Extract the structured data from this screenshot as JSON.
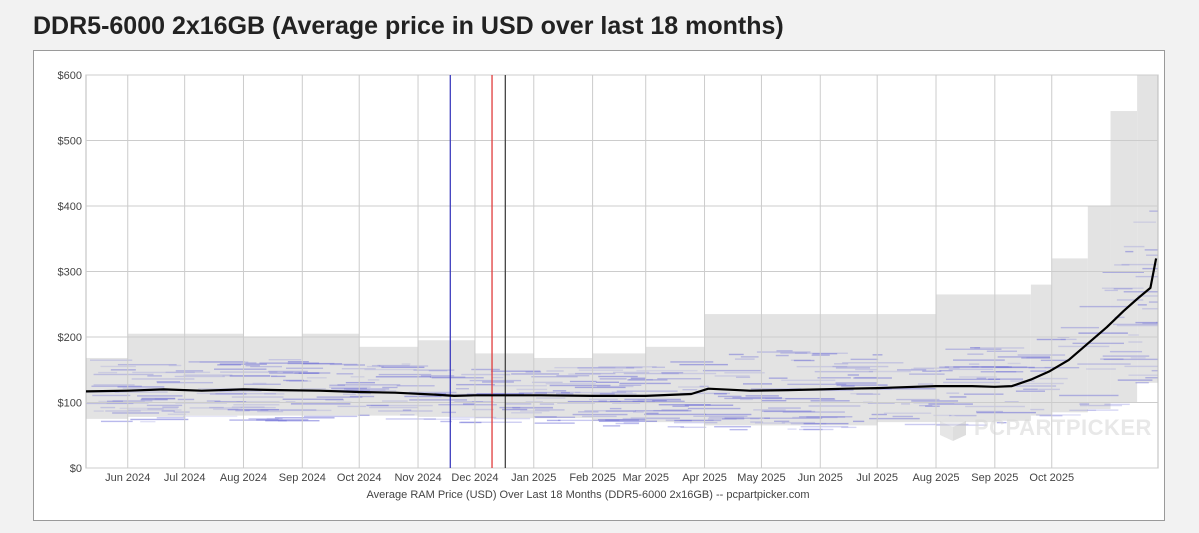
{
  "header": {
    "title": "DDR5-6000 2x16GB (Average price in USD over last 18 months)"
  },
  "watermark": {
    "text": "PCPARTPICKER",
    "logo_icon": "pcpartpicker-box-icon"
  },
  "colors": {
    "average_line": "#000000",
    "price_band": "#e3e3e3",
    "individual_prices": "#6b6bd6",
    "marker_blue": "#3d3dbd",
    "marker_red": "#e03c3c",
    "marker_black": "#444444",
    "grid": "#cccccc"
  },
  "chart_data": {
    "type": "line",
    "title": "DDR5-6000 2x16GB (Average price in USD over last 18 months)",
    "xlabel": "Average RAM Price (USD) Over Last 18 Months (DDR5-6000 2x16GB) -- pcpartpicker.com",
    "ylabel": "",
    "x_range": [
      "2024-05-10",
      "2025-11-26"
    ],
    "ylim": [
      0,
      600
    ],
    "y_ticks": [
      {
        "value": 0,
        "label": "$0"
      },
      {
        "value": 100,
        "label": "$100"
      },
      {
        "value": 200,
        "label": "$200"
      },
      {
        "value": 300,
        "label": "$300"
      },
      {
        "value": 400,
        "label": "$400"
      },
      {
        "value": 500,
        "label": "$500"
      },
      {
        "value": 600,
        "label": "$600"
      }
    ],
    "x_ticks": [
      {
        "date": "2024-06-01",
        "label": "Jun 2024"
      },
      {
        "date": "2024-07-01",
        "label": "Jul 2024"
      },
      {
        "date": "2024-08-01",
        "label": "Aug 2024"
      },
      {
        "date": "2024-09-01",
        "label": "Sep 2024"
      },
      {
        "date": "2024-10-01",
        "label": "Oct 2024"
      },
      {
        "date": "2024-11-01",
        "label": "Nov 2024"
      },
      {
        "date": "2024-12-01",
        "label": "Dec 2024"
      },
      {
        "date": "2025-01-01",
        "label": "Jan 2025"
      },
      {
        "date": "2025-02-01",
        "label": "Feb 2025"
      },
      {
        "date": "2025-03-01",
        "label": "Mar 2025"
      },
      {
        "date": "2025-04-01",
        "label": "Apr 2025"
      },
      {
        "date": "2025-05-01",
        "label": "May 2025"
      },
      {
        "date": "2025-06-01",
        "label": "Jun 2025"
      },
      {
        "date": "2025-07-01",
        "label": "Jul 2025"
      },
      {
        "date": "2025-08-01",
        "label": "Aug 2025"
      },
      {
        "date": "2025-09-01",
        "label": "Sep 2025"
      },
      {
        "date": "2025-10-01",
        "label": "Oct 2025"
      }
    ],
    "grid": true,
    "legend": "none",
    "series": [
      {
        "values": [
          {
            "x": "2024-05-10",
            "y": 117
          },
          {
            "x": "2024-06-01",
            "y": 118
          },
          {
            "x": "2024-06-20",
            "y": 120
          },
          {
            "x": "2024-07-10",
            "y": 118
          },
          {
            "x": "2024-08-01",
            "y": 120
          },
          {
            "x": "2024-08-20",
            "y": 119
          },
          {
            "x": "2024-09-10",
            "y": 118
          },
          {
            "x": "2024-10-01",
            "y": 116
          },
          {
            "x": "2024-10-20",
            "y": 115
          },
          {
            "x": "2024-11-10",
            "y": 112
          },
          {
            "x": "2024-11-20",
            "y": 110
          },
          {
            "x": "2024-12-01",
            "y": 111
          },
          {
            "x": "2024-12-20",
            "y": 111
          },
          {
            "x": "2025-01-05",
            "y": 111
          },
          {
            "x": "2025-02-01",
            "y": 110
          },
          {
            "x": "2025-03-01",
            "y": 110
          },
          {
            "x": "2025-03-25",
            "y": 113
          },
          {
            "x": "2025-04-03",
            "y": 121
          },
          {
            "x": "2025-04-25",
            "y": 118
          },
          {
            "x": "2025-05-15",
            "y": 119
          },
          {
            "x": "2025-06-01",
            "y": 120
          },
          {
            "x": "2025-06-15",
            "y": 121
          },
          {
            "x": "2025-07-01",
            "y": 122
          },
          {
            "x": "2025-08-01",
            "y": 125
          },
          {
            "x": "2025-08-20",
            "y": 125
          },
          {
            "x": "2025-09-01",
            "y": 124
          },
          {
            "x": "2025-09-10",
            "y": 125
          },
          {
            "x": "2025-09-20",
            "y": 135
          },
          {
            "x": "2025-09-30",
            "y": 148
          },
          {
            "x": "2025-10-10",
            "y": 165
          },
          {
            "x": "2025-10-20",
            "y": 190
          },
          {
            "x": "2025-10-30",
            "y": 215
          },
          {
            "x": "2025-11-08",
            "y": 240
          },
          {
            "x": "2025-11-15",
            "y": 258
          },
          {
            "x": "2025-11-22",
            "y": 275
          },
          {
            "x": "2025-11-25",
            "y": 320
          }
        ]
      }
    ],
    "price_range": [
      {
        "x": "2024-05-10",
        "low": 75,
        "high": 168
      },
      {
        "x": "2024-06-01",
        "low": 78,
        "high": 205
      },
      {
        "x": "2024-07-01",
        "low": 80,
        "high": 205
      },
      {
        "x": "2024-08-01",
        "low": 80,
        "high": 200
      },
      {
        "x": "2024-09-01",
        "low": 80,
        "high": 205
      },
      {
        "x": "2024-10-01",
        "low": 80,
        "high": 185
      },
      {
        "x": "2024-11-01",
        "low": 78,
        "high": 195
      },
      {
        "x": "2024-12-01",
        "low": 76,
        "high": 175
      },
      {
        "x": "2025-01-01",
        "low": 76,
        "high": 168
      },
      {
        "x": "2025-02-01",
        "low": 72,
        "high": 175
      },
      {
        "x": "2025-03-01",
        "low": 70,
        "high": 185
      },
      {
        "x": "2025-04-01",
        "low": 65,
        "high": 235
      },
      {
        "x": "2025-05-01",
        "low": 65,
        "high": 235
      },
      {
        "x": "2025-06-01",
        "low": 65,
        "high": 235
      },
      {
        "x": "2025-07-01",
        "low": 70,
        "high": 235
      },
      {
        "x": "2025-08-01",
        "low": 70,
        "high": 265
      },
      {
        "x": "2025-09-01",
        "low": 72,
        "high": 265
      },
      {
        "x": "2025-09-20",
        "low": 80,
        "high": 280
      },
      {
        "x": "2025-10-01",
        "low": 85,
        "high": 320
      },
      {
        "x": "2025-10-20",
        "low": 90,
        "high": 400
      },
      {
        "x": "2025-11-01",
        "low": 100,
        "high": 545
      },
      {
        "x": "2025-11-15",
        "low": 130,
        "high": 600
      },
      {
        "x": "2025-11-26",
        "low": 140,
        "high": 600
      }
    ],
    "vertical_markers": [
      {
        "x": "2024-11-18",
        "color": "#3d3dbd"
      },
      {
        "x": "2024-12-10",
        "color": "#e03c3c"
      },
      {
        "x": "2024-12-17",
        "color": "#444444"
      }
    ]
  }
}
